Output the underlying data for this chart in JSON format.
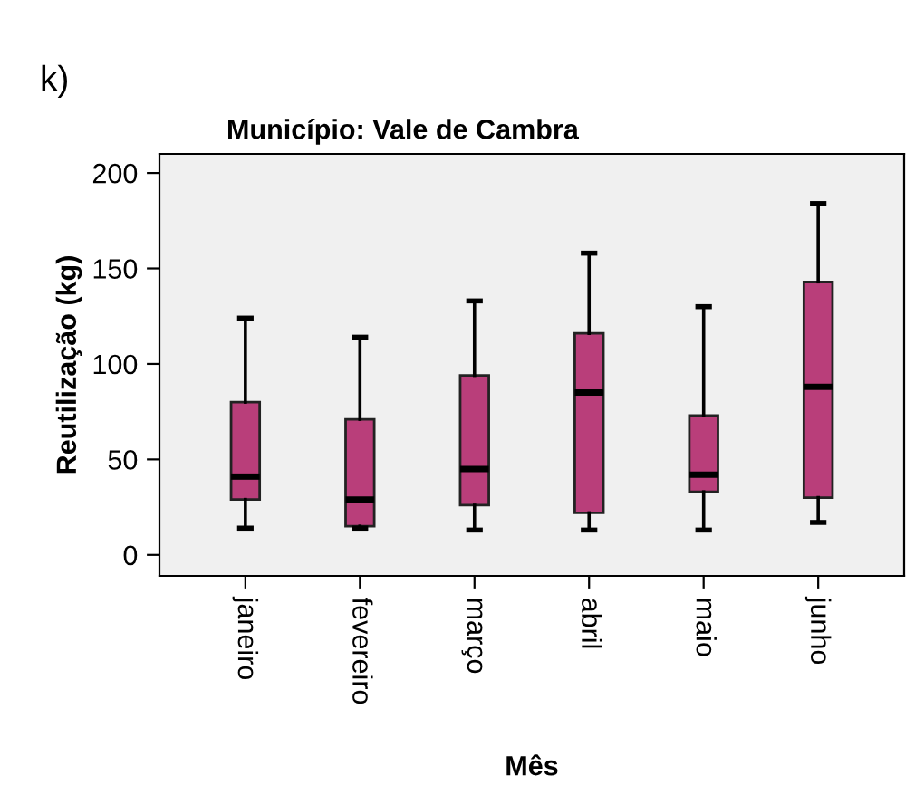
{
  "chart_data": {
    "type": "box",
    "title": "Município: Vale de Cambra",
    "xlabel": "Mês",
    "ylabel": "Reutilização (kg)",
    "annotations": [
      "k)"
    ],
    "categories": [
      "janeiro",
      "fevereiro",
      "março",
      "abril",
      "maio",
      "junho"
    ],
    "color": "#b93e7a",
    "ylim": [
      -11,
      210
    ],
    "yticks": [
      0,
      50,
      100,
      150,
      200
    ],
    "grid": false,
    "boxes": [
      {
        "low": 14,
        "q1": 29,
        "median": 41,
        "q3": 80,
        "high": 124
      },
      {
        "low": 14,
        "q1": 15,
        "median": 29,
        "q3": 71,
        "high": 114
      },
      {
        "low": 13,
        "q1": 26,
        "median": 45,
        "q3": 94,
        "high": 133
      },
      {
        "low": 13,
        "q1": 22,
        "median": 85,
        "q3": 116,
        "high": 158
      },
      {
        "low": 13,
        "q1": 33,
        "median": 42,
        "q3": 73,
        "high": 130
      },
      {
        "low": 17,
        "q1": 30,
        "median": 88,
        "q3": 143,
        "high": 184
      }
    ]
  }
}
